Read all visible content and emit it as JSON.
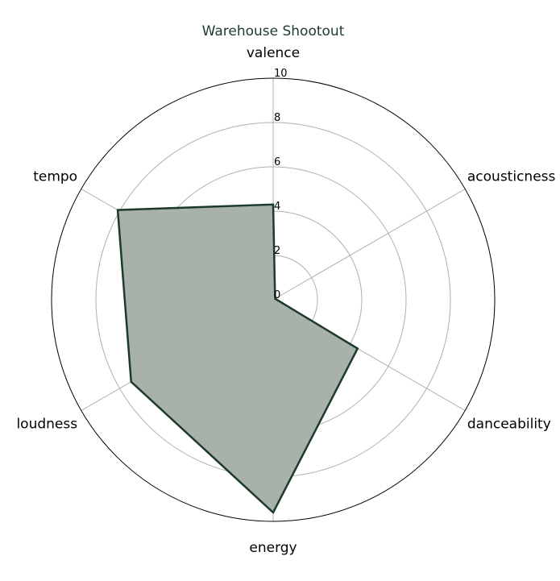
{
  "chart_data": {
    "type": "radar",
    "title": "Warehouse Shootout",
    "categories": [
      "valence",
      "acousticness",
      "danceability",
      "energy",
      "loudness",
      "tempo"
    ],
    "series": [
      {
        "values": [
          4.3,
          0.1,
          4.4,
          9.6,
          7.4,
          8.1
        ]
      }
    ],
    "rlim": [
      0,
      10
    ],
    "rticks": [
      "0",
      "2",
      "4",
      "6",
      "8",
      "10"
    ],
    "grid": true,
    "colors": {
      "line": "#1e3a2a",
      "fill": "#a8b1aa",
      "title": "#1e3a2a"
    }
  }
}
